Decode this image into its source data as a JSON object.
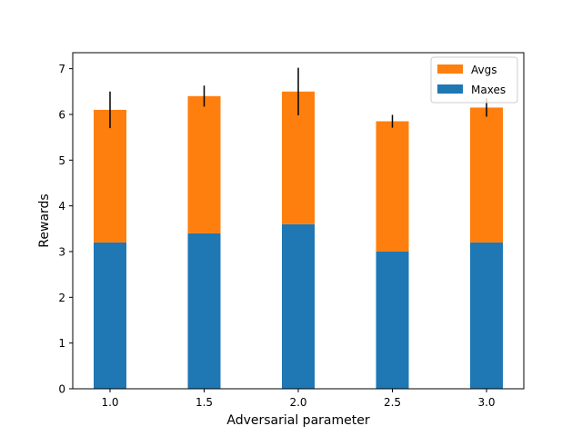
{
  "chart_data": {
    "type": "bar",
    "stacked": true,
    "xlabel": "Adversarial parameter",
    "ylabel": "Rewards",
    "ylim": [
      0,
      7.35
    ],
    "yticks": [
      0,
      1,
      2,
      3,
      4,
      5,
      6,
      7
    ],
    "categories": [
      "1.0",
      "1.5",
      "2.0",
      "2.5",
      "3.0"
    ],
    "series": [
      {
        "name": "Maxes",
        "color": "#1f77b4",
        "values": [
          3.2,
          3.4,
          3.6,
          3.0,
          3.2
        ]
      },
      {
        "name": "Avgs",
        "color": "#ff7f0e",
        "values": [
          2.9,
          3.0,
          2.9,
          2.85,
          2.95
        ]
      }
    ],
    "error_bars": {
      "on_series": "Avgs",
      "color": "#000000",
      "plus_minus": [
        0.4,
        0.23,
        0.52,
        0.14,
        0.2
      ]
    },
    "grid": false,
    "legend_placement": "top-right",
    "legend_order": [
      "Avgs",
      "Maxes"
    ]
  }
}
